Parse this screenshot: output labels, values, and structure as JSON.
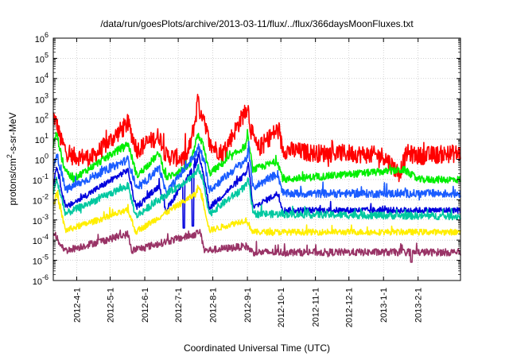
{
  "chart_data": {
    "type": "line",
    "title": "/data/run/goesPlots/archive/2013-03-11/flux/../flux/366daysMoonFluxes.txt",
    "xlabel": "Coordinated Universal Time (UTC)",
    "ylabel_main": "protons/cm",
    "ylabel_sup": "2",
    "ylabel_rest": "-s-sr-MeV",
    "yscale": "log",
    "ylim": [
      1e-06,
      1000000.0
    ],
    "xlim": [
      "2012-03-11",
      "2013-03-11"
    ],
    "grid": true,
    "y_ticks": [
      {
        "value": 1e-06,
        "base": "10",
        "exp": "-6"
      },
      {
        "value": 1e-05,
        "base": "10",
        "exp": "-5"
      },
      {
        "value": 0.0001,
        "base": "10",
        "exp": "-4"
      },
      {
        "value": 0.001,
        "base": "10",
        "exp": "-3"
      },
      {
        "value": 0.01,
        "base": "10",
        "exp": "-2"
      },
      {
        "value": 0.1,
        "base": "10",
        "exp": "-1"
      },
      {
        "value": 1.0,
        "base": "10",
        "exp": "0"
      },
      {
        "value": 10.0,
        "base": "10",
        "exp": "1"
      },
      {
        "value": 100.0,
        "base": "10",
        "exp": "2"
      },
      {
        "value": 1000.0,
        "base": "10",
        "exp": "3"
      },
      {
        "value": 10000.0,
        "base": "10",
        "exp": "4"
      },
      {
        "value": 100000.0,
        "base": "10",
        "exp": "5"
      },
      {
        "value": 1000000.0,
        "base": "10",
        "exp": "6"
      }
    ],
    "x_ticks": [
      {
        "date": "2012-04-01",
        "label": "2012-4-1"
      },
      {
        "date": "2012-05-01",
        "label": "2012-5-1"
      },
      {
        "date": "2012-06-01",
        "label": "2012-6-1"
      },
      {
        "date": "2012-07-01",
        "label": "2012-7-1"
      },
      {
        "date": "2012-08-01",
        "label": "2012-8-1"
      },
      {
        "date": "2012-09-01",
        "label": "2012-9-1"
      },
      {
        "date": "2012-10-01",
        "label": "2012-10-1"
      },
      {
        "date": "2012-11-01",
        "label": "2012-11-1"
      },
      {
        "date": "2012-12-01",
        "label": "2012-12-1"
      },
      {
        "date": "2013-01-01",
        "label": "2013-1-1"
      },
      {
        "date": "2013-02-01",
        "label": "2013-2-1"
      }
    ],
    "series": [
      {
        "color": "#ff0000",
        "baseline": 2,
        "noise": 0.45,
        "dips": [],
        "points": [
          [
            "2012-03-11",
            150
          ],
          [
            "2012-03-14",
            60
          ],
          [
            "2012-03-18",
            8
          ],
          [
            "2012-03-25",
            1.5
          ],
          [
            "2012-04-15",
            1.2
          ],
          [
            "2012-05-17",
            60
          ],
          [
            "2012-05-25",
            3
          ],
          [
            "2012-06-14",
            15
          ],
          [
            "2012-06-20",
            1.5
          ],
          [
            "2012-07-08",
            1
          ],
          [
            "2012-07-12",
            6
          ],
          [
            "2012-07-17",
            150
          ],
          [
            "2012-07-19",
            2200
          ],
          [
            "2012-07-21",
            60
          ],
          [
            "2012-07-23",
            300
          ],
          [
            "2012-07-29",
            5
          ],
          [
            "2012-08-10",
            2
          ],
          [
            "2012-08-31",
            300
          ],
          [
            "2012-09-01",
            600
          ],
          [
            "2012-09-04",
            30
          ],
          [
            "2012-09-10",
            3
          ],
          [
            "2012-09-28",
            30
          ],
          [
            "2012-10-03",
            3
          ],
          [
            "2012-11-01",
            2
          ],
          [
            "2012-12-01",
            2
          ],
          [
            "2013-01-01",
            1.5
          ],
          [
            "2013-01-15",
            0.2
          ],
          [
            "2013-01-22",
            2
          ],
          [
            "2013-02-01",
            1.5
          ],
          [
            "2013-03-11",
            2
          ]
        ]
      },
      {
        "color": "#00ee00",
        "baseline": 0.1,
        "noise": 0.18,
        "dips": [],
        "points": [
          [
            "2012-03-11",
            5
          ],
          [
            "2012-03-14",
            20
          ],
          [
            "2012-03-20",
            0.5
          ],
          [
            "2012-03-28",
            0.1
          ],
          [
            "2012-05-17",
            6
          ],
          [
            "2012-05-25",
            0.15
          ],
          [
            "2012-06-14",
            2
          ],
          [
            "2012-06-20",
            0.12
          ],
          [
            "2012-07-12",
            0.5
          ],
          [
            "2012-07-17",
            8
          ],
          [
            "2012-07-19",
            15
          ],
          [
            "2012-07-23",
            6
          ],
          [
            "2012-07-29",
            0.2
          ],
          [
            "2012-08-31",
            5
          ],
          [
            "2012-09-01",
            15
          ],
          [
            "2012-09-06",
            0.3
          ],
          [
            "2012-09-28",
            0.8
          ],
          [
            "2012-10-03",
            0.1
          ],
          [
            "2013-01-20",
            0.3
          ],
          [
            "2013-02-01",
            0.1
          ],
          [
            "2013-03-11",
            0.1
          ]
        ]
      },
      {
        "color": "#1a5cff",
        "baseline": 0.02,
        "noise": 0.2,
        "dips": [],
        "points": [
          [
            "2012-03-11",
            0.3
          ],
          [
            "2012-03-14",
            2
          ],
          [
            "2012-03-22",
            0.03
          ],
          [
            "2012-05-17",
            1
          ],
          [
            "2012-05-25",
            0.03
          ],
          [
            "2012-06-14",
            0.4
          ],
          [
            "2012-06-20",
            0.02
          ],
          [
            "2012-07-17",
            2
          ],
          [
            "2012-07-19",
            4
          ],
          [
            "2012-07-23",
            1.5
          ],
          [
            "2012-07-29",
            0.03
          ],
          [
            "2012-08-31",
            1
          ],
          [
            "2012-09-02",
            3
          ],
          [
            "2012-09-06",
            0.04
          ],
          [
            "2012-09-28",
            0.2
          ],
          [
            "2012-10-03",
            0.02
          ],
          [
            "2013-03-11",
            0.02
          ]
        ]
      },
      {
        "color": "#0000dd",
        "baseline": 0.003,
        "noise": 0.15,
        "dips": [
          [
            "2012-07-06",
            0.0004
          ],
          [
            "2012-07-14",
            0.0005
          ]
        ],
        "points": [
          [
            "2012-03-11",
            0.05
          ],
          [
            "2012-03-14",
            0.5
          ],
          [
            "2012-03-22",
            0.004
          ],
          [
            "2012-05-17",
            0.3
          ],
          [
            "2012-05-24",
            0.004
          ],
          [
            "2012-06-14",
            0.05
          ],
          [
            "2012-06-20",
            0.003
          ],
          [
            "2012-07-17",
            0.6
          ],
          [
            "2012-07-19",
            1.5
          ],
          [
            "2012-07-23",
            0.3
          ],
          [
            "2012-07-29",
            0.004
          ],
          [
            "2012-08-31",
            0.2
          ],
          [
            "2012-09-02",
            0.6
          ],
          [
            "2012-09-06",
            0.004
          ],
          [
            "2012-09-28",
            0.02
          ],
          [
            "2012-10-03",
            0.003
          ],
          [
            "2013-03-11",
            0.003
          ]
        ]
      },
      {
        "color": "#00c8a0",
        "baseline": 0.0015,
        "noise": 0.18,
        "dips": [],
        "points": [
          [
            "2012-03-11",
            0.02
          ],
          [
            "2012-03-14",
            0.1
          ],
          [
            "2012-03-22",
            0.002
          ],
          [
            "2012-05-17",
            0.05
          ],
          [
            "2012-05-24",
            0.0015
          ],
          [
            "2012-07-17",
            0.2
          ],
          [
            "2012-07-19",
            0.4
          ],
          [
            "2012-07-23",
            0.1
          ],
          [
            "2012-07-29",
            0.002
          ],
          [
            "2012-08-31",
            0.05
          ],
          [
            "2012-09-02",
            0.1
          ],
          [
            "2012-09-06",
            0.002
          ],
          [
            "2013-03-11",
            0.0015
          ]
        ]
      },
      {
        "color": "#ffee00",
        "baseline": 0.00025,
        "noise": 0.15,
        "dips": [],
        "points": [
          [
            "2012-03-11",
            0.005
          ],
          [
            "2012-03-14",
            0.02
          ],
          [
            "2012-03-22",
            0.0003
          ],
          [
            "2012-05-17",
            0.003
          ],
          [
            "2012-05-24",
            0.00025
          ],
          [
            "2012-07-17",
            0.02
          ],
          [
            "2012-07-19",
            0.05
          ],
          [
            "2012-07-23",
            0.01
          ],
          [
            "2012-07-29",
            0.0003
          ],
          [
            "2012-08-31",
            0.001
          ],
          [
            "2012-09-06",
            0.00025
          ],
          [
            "2013-03-11",
            0.00025
          ]
        ]
      },
      {
        "color": "#993366",
        "baseline": 2.5e-05,
        "noise": 0.18,
        "dips": [
          [
            "2013-01-26",
            8e-06
          ]
        ],
        "points": [
          [
            "2012-03-11",
            0.0003
          ],
          [
            "2012-03-15",
            0.0001
          ],
          [
            "2012-03-22",
            3e-05
          ],
          [
            "2012-05-17",
            0.0002
          ],
          [
            "2012-05-20",
            3e-05
          ],
          [
            "2012-07-17",
            0.0002
          ],
          [
            "2012-07-20",
            0.0003
          ],
          [
            "2012-07-25",
            3e-05
          ],
          [
            "2012-08-31",
            5e-05
          ],
          [
            "2012-09-06",
            2.5e-05
          ],
          [
            "2013-03-11",
            2.5e-05
          ]
        ]
      }
    ]
  }
}
